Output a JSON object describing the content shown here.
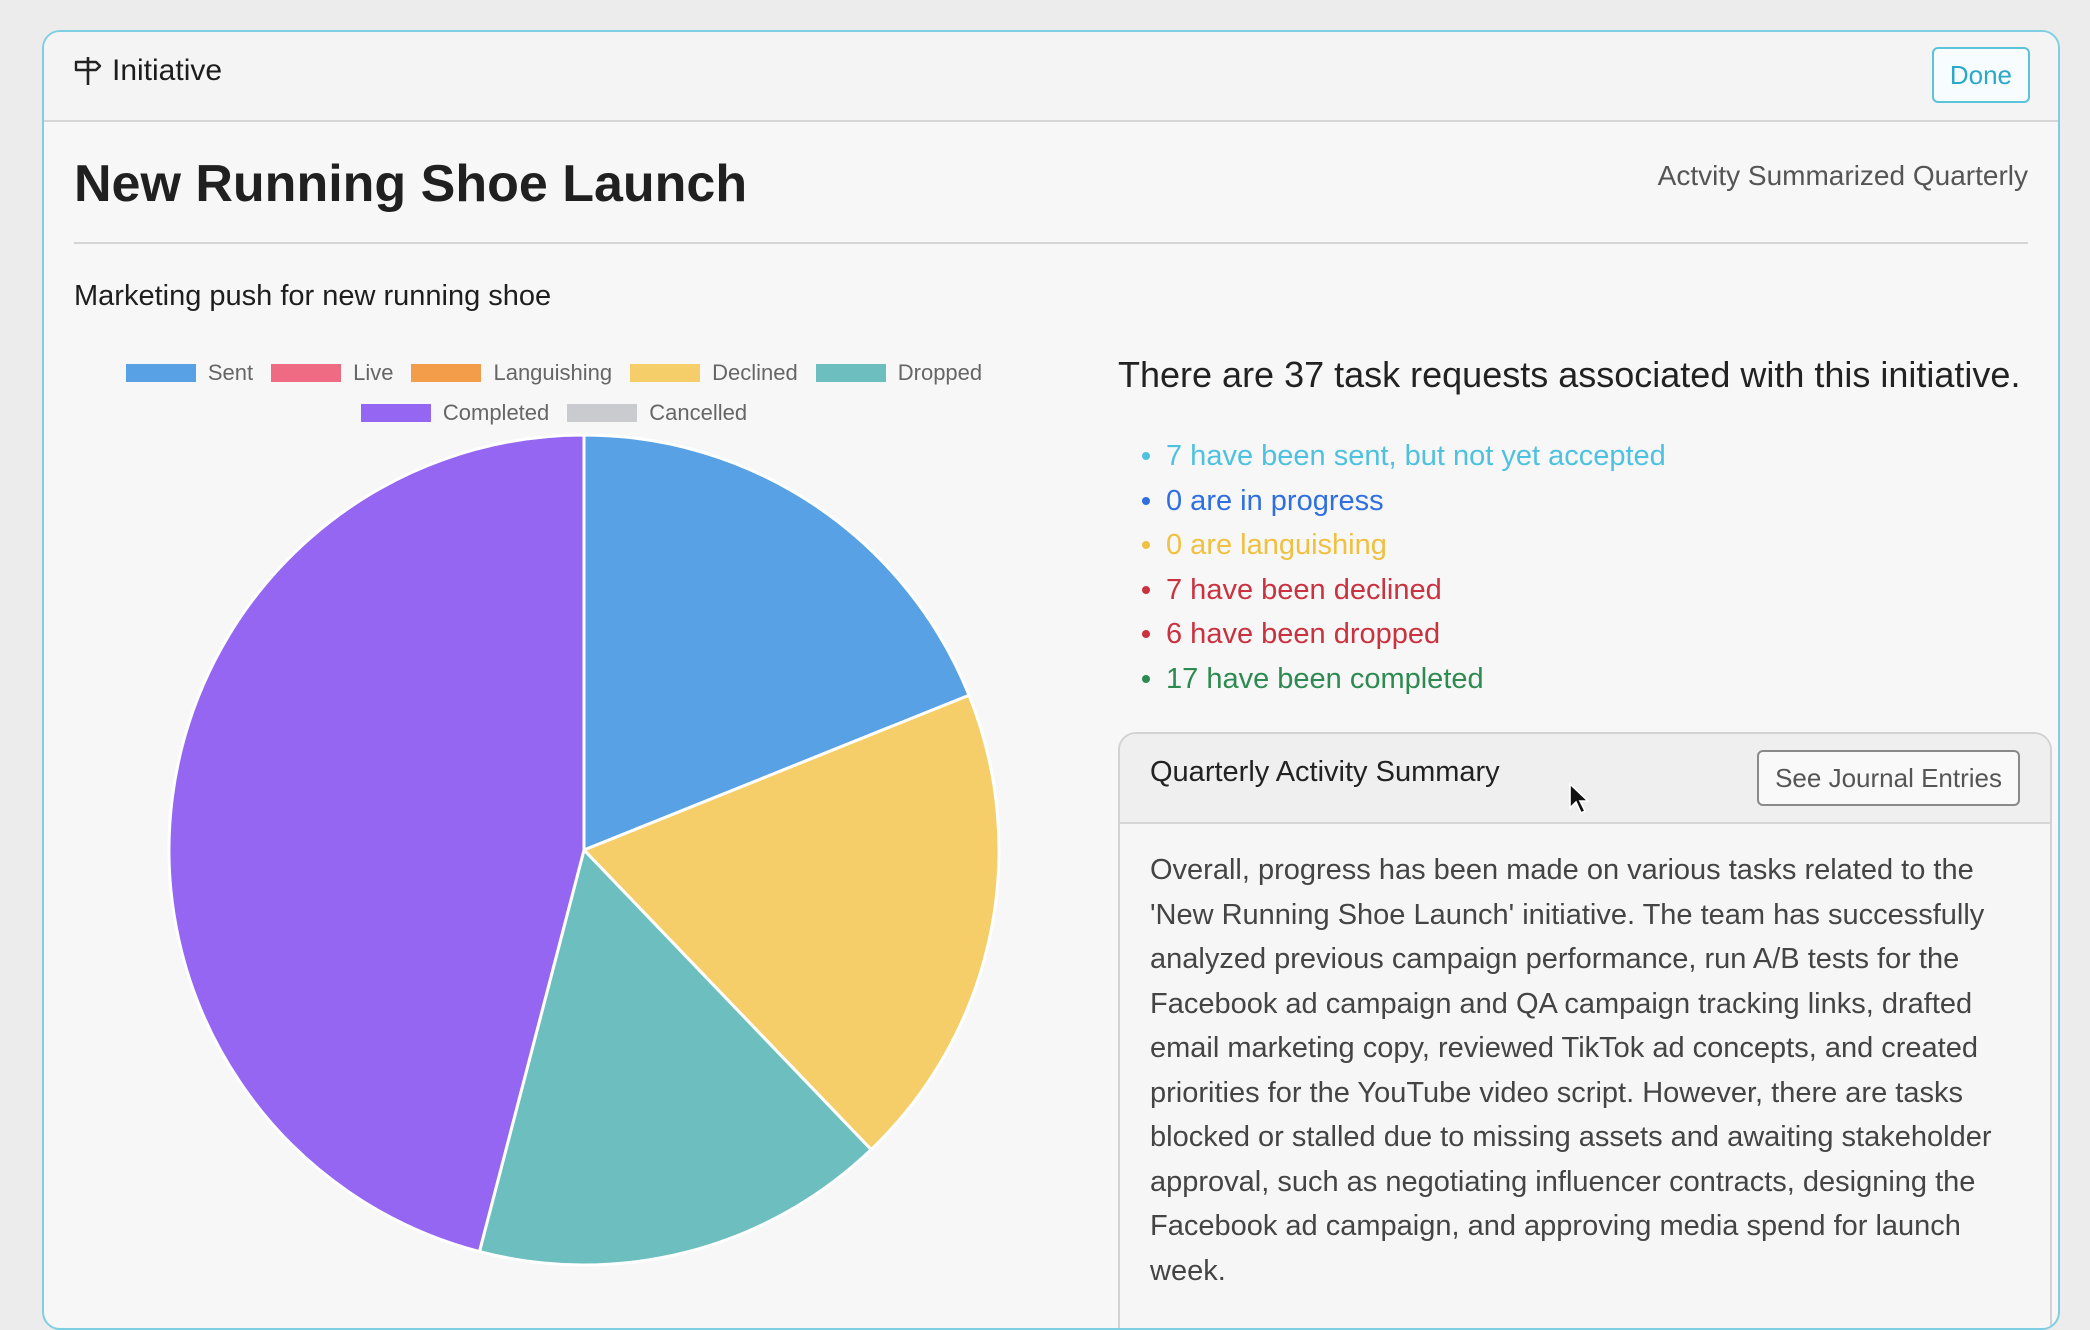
{
  "header": {
    "title": "Initiative",
    "icon": "signpost-icon",
    "done_label": "Done"
  },
  "page": {
    "title": "New Running Shoe Launch",
    "summary_mode": "Actvity Summarized Quarterly"
  },
  "chart_data": {
    "type": "pie",
    "title": "Marketing push for new running shoe",
    "legend_position": "top",
    "categories": [
      "Sent",
      "Live",
      "Languishing",
      "Declined",
      "Dropped",
      "Completed",
      "Cancelled"
    ],
    "values": [
      7,
      0,
      0,
      7,
      6,
      17,
      0
    ],
    "colors": [
      "#58a1e4",
      "#ef6b84",
      "#f39d4a",
      "#f6ce69",
      "#6dbfbf",
      "#9466f2",
      "#cacbcf"
    ]
  },
  "tasks": {
    "summary": "There are 37 task requests associated with this initiative.",
    "statuses": [
      {
        "text": "7 have been sent, but not yet accepted",
        "color": "#4fc1e0"
      },
      {
        "text": "0 are in progress",
        "color": "#2f6fe0"
      },
      {
        "text": "0 are languishing",
        "color": "#f0c040"
      },
      {
        "text": "7 have been declined",
        "color": "#c9323f"
      },
      {
        "text": "6 have been dropped",
        "color": "#c9323f"
      },
      {
        "text": "17 have been completed",
        "color": "#2d8a50"
      }
    ]
  },
  "summary_card": {
    "title": "Quarterly Activity Summary",
    "button_label": "See Journal Entries",
    "body": "Overall, progress has been made on various tasks related to the 'New Running Shoe Launch' initiative. The team has successfully analyzed previous campaign performance, run A/B tests for the Facebook ad campaign and QA campaign tracking links, drafted email marketing copy, reviewed TikTok ad concepts, and created priorities for the YouTube video script. However, there are tasks blocked or stalled due to missing assets and awaiting stakeholder approval, such as negotiating influencer contracts, designing the Facebook ad campaign, and approving media spend for launch week."
  }
}
